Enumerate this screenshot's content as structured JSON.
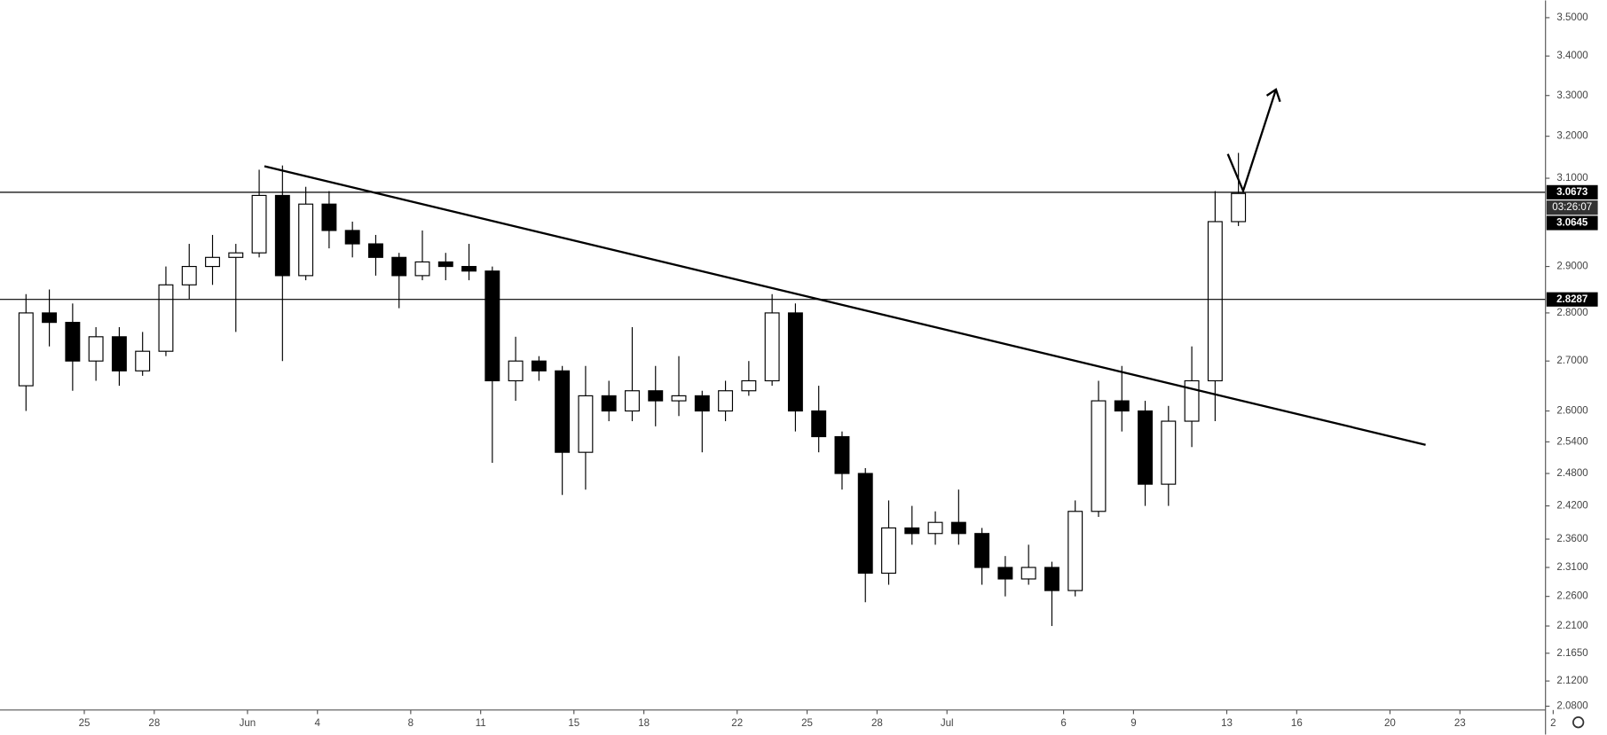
{
  "chart_data": {
    "type": "candlestick",
    "log_scale": true,
    "grid": false,
    "up_color": "#ffffff",
    "down_color": "#000000",
    "categories": [
      null,
      null,
      null,
      "25",
      null,
      null,
      "28",
      null,
      null,
      null,
      "Jun",
      null,
      null,
      "4",
      null,
      null,
      null,
      "8",
      null,
      null,
      "11",
      null,
      null,
      null,
      "15",
      null,
      null,
      "18",
      null,
      null,
      null,
      "22",
      null,
      null,
      "25",
      null,
      null,
      "28",
      null,
      null,
      "Jul",
      null,
      null,
      null,
      null,
      "6",
      null,
      null,
      "9",
      null,
      null,
      null,
      "13",
      null,
      null,
      "16",
      null,
      null,
      null,
      "20",
      null,
      null,
      "23",
      null,
      null,
      null,
      "2"
    ],
    "open": [
      2.65,
      2.8,
      2.78,
      2.7,
      2.75,
      2.68,
      2.72,
      2.86,
      2.9,
      2.92,
      2.93,
      3.06,
      2.88,
      3.04,
      2.98,
      2.95,
      2.92,
      2.88,
      2.91,
      2.9,
      2.89,
      2.66,
      2.7,
      2.68,
      2.52,
      2.63,
      2.6,
      2.64,
      2.62,
      2.63,
      2.6,
      2.64,
      2.66,
      2.8,
      2.6,
      2.55,
      2.48,
      2.3,
      2.38,
      2.37,
      2.39,
      2.37,
      2.31,
      2.29,
      2.31,
      2.27,
      2.41,
      2.62,
      2.6,
      2.46,
      2.58,
      2.66,
      3.0,
      null,
      null,
      null,
      null,
      null,
      null,
      null,
      null,
      null,
      null,
      null,
      null,
      null,
      null
    ],
    "high": [
      2.84,
      2.85,
      2.82,
      2.77,
      2.77,
      2.76,
      2.9,
      2.95,
      2.97,
      2.95,
      3.12,
      3.13,
      3.08,
      3.07,
      3.0,
      2.97,
      2.93,
      2.98,
      2.93,
      2.95,
      2.9,
      2.75,
      2.71,
      2.69,
      2.69,
      2.66,
      2.77,
      2.69,
      2.71,
      2.64,
      2.66,
      2.7,
      2.84,
      2.82,
      2.65,
      2.56,
      2.49,
      2.43,
      2.42,
      2.41,
      2.45,
      2.38,
      2.33,
      2.35,
      2.32,
      2.43,
      2.66,
      2.69,
      2.62,
      2.61,
      2.73,
      3.07,
      3.16,
      null,
      null,
      null,
      null,
      null,
      null,
      null,
      null,
      null,
      null,
      null,
      null,
      null,
      null
    ],
    "low": [
      2.6,
      2.73,
      2.64,
      2.66,
      2.65,
      2.67,
      2.71,
      2.83,
      2.86,
      2.76,
      2.92,
      2.7,
      2.87,
      2.94,
      2.92,
      2.88,
      2.81,
      2.87,
      2.87,
      2.87,
      2.5,
      2.62,
      2.66,
      2.44,
      2.45,
      2.58,
      2.58,
      2.57,
      2.59,
      2.52,
      2.58,
      2.63,
      2.65,
      2.56,
      2.52,
      2.45,
      2.25,
      2.28,
      2.35,
      2.35,
      2.35,
      2.28,
      2.26,
      2.28,
      2.21,
      2.26,
      2.4,
      2.56,
      2.42,
      2.42,
      2.53,
      2.58,
      2.99,
      null,
      null,
      null,
      null,
      null,
      null,
      null,
      null,
      null,
      null,
      null,
      null,
      null,
      null
    ],
    "close": [
      2.8,
      2.78,
      2.7,
      2.75,
      2.68,
      2.72,
      2.86,
      2.9,
      2.92,
      2.93,
      3.06,
      2.88,
      3.04,
      2.98,
      2.95,
      2.92,
      2.88,
      2.91,
      2.9,
      2.89,
      2.66,
      2.7,
      2.68,
      2.52,
      2.63,
      2.6,
      2.64,
      2.62,
      2.63,
      2.6,
      2.64,
      2.66,
      2.8,
      2.6,
      2.55,
      2.48,
      2.3,
      2.38,
      2.37,
      2.39,
      2.37,
      2.31,
      2.29,
      2.31,
      2.27,
      2.41,
      2.62,
      2.6,
      2.46,
      2.58,
      2.66,
      3.0,
      3.0645,
      null,
      null,
      null,
      null,
      null,
      null,
      null,
      null,
      null,
      null,
      null,
      null,
      null,
      null
    ],
    "ylim": [
      2.074,
      3.546
    ],
    "yticks": [
      {
        "value": 3.5,
        "label": "3.5000"
      },
      {
        "value": 3.4,
        "label": "3.4000"
      },
      {
        "value": 3.3,
        "label": "3.3000"
      },
      {
        "value": 3.2,
        "label": "3.2000"
      },
      {
        "value": 3.1,
        "label": "3.1000"
      },
      {
        "value": 2.9,
        "label": "2.9000"
      },
      {
        "value": 2.8,
        "label": "2.8000"
      },
      {
        "value": 2.7,
        "label": "2.7000"
      },
      {
        "value": 2.6,
        "label": "2.6000"
      },
      {
        "value": 2.54,
        "label": "2.5400"
      },
      {
        "value": 2.48,
        "label": "2.4800"
      },
      {
        "value": 2.42,
        "label": "2.4200"
      },
      {
        "value": 2.36,
        "label": "2.3600"
      },
      {
        "value": 2.31,
        "label": "2.3100"
      },
      {
        "value": 2.26,
        "label": "2.2600"
      },
      {
        "value": 2.21,
        "label": "2.2100"
      },
      {
        "value": 2.165,
        "label": "2.1650"
      },
      {
        "value": 2.12,
        "label": "2.1200"
      },
      {
        "value": 2.08,
        "label": "2.0800"
      }
    ],
    "horizontal_lines": [
      3.0673,
      2.8287
    ],
    "last_price": 3.0645,
    "countdown": "03:26:07"
  }
}
